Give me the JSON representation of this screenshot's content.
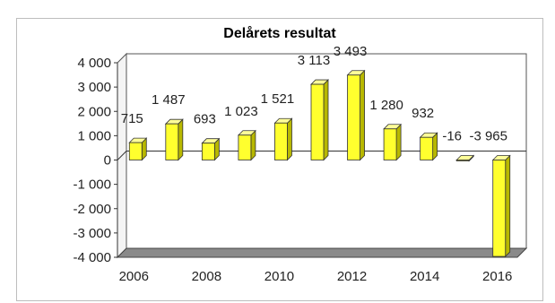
{
  "chart_data": {
    "type": "bar",
    "title": "Delårets resultat",
    "xlabel": "",
    "ylabel": "",
    "categories": [
      "2006",
      "2007",
      "2008",
      "2009",
      "2010",
      "2011",
      "2012",
      "2013",
      "2014",
      "2015",
      "2016"
    ],
    "x_tick_labels": [
      "2006",
      "2008",
      "2010",
      "2012",
      "2014",
      "2016"
    ],
    "values": [
      715,
      1487,
      693,
      1023,
      1521,
      3113,
      3493,
      1280,
      932,
      -16,
      -3965
    ],
    "data_labels": [
      "715",
      "1 487",
      "693",
      "1 023",
      "1 521",
      "3 113",
      "3 493",
      "1 280",
      "932",
      "-16",
      "-3 965"
    ],
    "ylim": [
      -4000,
      4000
    ],
    "y_tick_labels": [
      "4 000",
      "3 000",
      "2 000",
      "1 000",
      "0",
      "-1 000",
      "-2 000",
      "-3 000",
      "-4 000"
    ],
    "y_tick_values": [
      4000,
      3000,
      2000,
      1000,
      0,
      -1000,
      -2000,
      -3000,
      -4000
    ],
    "grid": false,
    "legend": "none",
    "colors": {
      "bar_face": "#ffff2e",
      "bar_side": "#b8b800",
      "bar_top": "#ffff99",
      "wall": "#ffffff",
      "floor": "#8a8a8a"
    }
  }
}
